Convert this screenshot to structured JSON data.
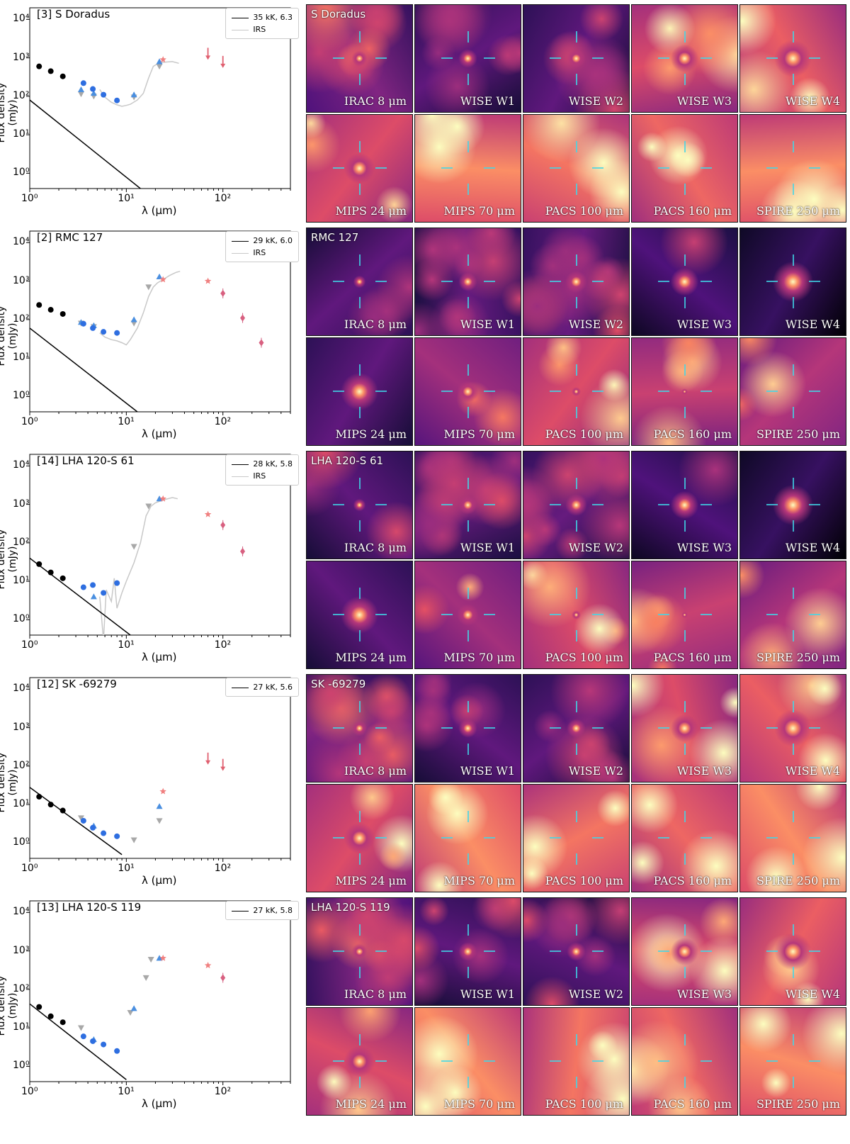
{
  "common": {
    "ylabel": "Flux density (mJy)",
    "xlabel": "λ (μm)",
    "yticks": [
      "10⁴",
      "10³",
      "10²",
      "10¹",
      "10⁰"
    ],
    "xticks": [
      "10⁰",
      "10¹",
      "10²"
    ],
    "irs_label": "IRS",
    "panel_labels": [
      "IRAC 8 μm",
      "WISE W1",
      "WISE W2",
      "WISE W3",
      "WISE W4",
      "MIPS 24 μm",
      "MIPS 70 μm",
      "PACS 100 μm",
      "PACS 160 μm",
      "SPIRE 250 μm"
    ]
  },
  "chart_data": [
    {
      "type": "scatter",
      "title": "[3] S Doradus",
      "source": "S Doradus",
      "model": "35 kK, 6.3",
      "irs": true,
      "model_line": [
        [
          1,
          80
        ],
        [
          14,
          0.4
        ]
      ],
      "black": [
        [
          1.25,
          600
        ],
        [
          1.65,
          450
        ],
        [
          2.2,
          330
        ]
      ],
      "blue_circles": [
        [
          3.6,
          220
        ],
        [
          4.5,
          155
        ],
        [
          5.8,
          110
        ],
        [
          8,
          78
        ]
      ],
      "blue_tri": [
        [
          3.4,
          150
        ],
        [
          4.6,
          120
        ],
        [
          12,
          110
        ],
        [
          22,
          800
        ]
      ],
      "grey_tri": [
        [
          3.4,
          115
        ],
        [
          4.6,
          100
        ],
        [
          12,
          95
        ],
        [
          22,
          600
        ]
      ],
      "red_star": [
        [
          24,
          900
        ]
      ],
      "upper": [
        [
          70,
          1300
        ],
        [
          100,
          800
        ]
      ],
      "diamond": [],
      "irs_pts": [
        [
          5.3,
          150
        ],
        [
          6,
          95
        ],
        [
          7,
          70
        ],
        [
          8,
          60
        ],
        [
          9,
          55
        ],
        [
          10,
          58
        ],
        [
          11,
          62
        ],
        [
          13,
          80
        ],
        [
          15,
          120
        ],
        [
          17,
          300
        ],
        [
          19,
          600
        ],
        [
          21,
          700
        ],
        [
          23,
          760
        ],
        [
          26,
          780
        ],
        [
          30,
          800
        ],
        [
          35,
          720
        ]
      ],
      "bg": "dense"
    },
    {
      "type": "scatter",
      "title": "[2] RMC 127",
      "source": "RMC 127",
      "model": "29 kK, 6.0",
      "irs": true,
      "model_line": [
        [
          1,
          60
        ],
        [
          13,
          0.4
        ]
      ],
      "black": [
        [
          1.25,
          240
        ],
        [
          1.65,
          180
        ],
        [
          2.2,
          140
        ]
      ],
      "blue_circles": [
        [
          3.6,
          78
        ],
        [
          4.5,
          60
        ],
        [
          5.8,
          48
        ],
        [
          8,
          45
        ]
      ],
      "blue_tri": [
        [
          3.4,
          85
        ],
        [
          4.6,
          70
        ],
        [
          12,
          100
        ],
        [
          22,
          1300
        ]
      ],
      "grey_tri": [
        [
          3.4,
          80
        ],
        [
          4.6,
          65
        ],
        [
          12,
          80
        ],
        [
          17,
          700
        ]
      ],
      "red_star": [
        [
          24,
          1100
        ],
        [
          70,
          1000
        ]
      ],
      "upper": [],
      "diamond": [
        [
          100,
          480
        ],
        [
          160,
          110
        ],
        [
          250,
          25
        ]
      ],
      "irs_pts": [
        [
          5.3,
          45
        ],
        [
          6,
          35
        ],
        [
          7,
          30
        ],
        [
          8,
          28
        ],
        [
          9,
          25
        ],
        [
          10,
          22
        ],
        [
          11,
          30
        ],
        [
          13,
          60
        ],
        [
          15,
          150
        ],
        [
          17,
          400
        ],
        [
          19,
          700
        ],
        [
          21,
          900
        ],
        [
          24,
          1100
        ],
        [
          28,
          1400
        ],
        [
          33,
          1700
        ],
        [
          36,
          1800
        ]
      ],
      "bg": "sparse"
    },
    {
      "type": "scatter",
      "title": "[14] LHA 120-S 61",
      "source": "LHA 120-S 61",
      "model": "28 kK, 5.8",
      "irs": true,
      "model_line": [
        [
          1,
          40
        ],
        [
          11,
          0.4
        ]
      ],
      "black": [
        [
          1.25,
          28
        ],
        [
          1.65,
          17
        ],
        [
          2.2,
          12
        ]
      ],
      "blue_circles": [
        [
          3.6,
          7
        ],
        [
          4.5,
          8
        ],
        [
          5.8,
          5
        ],
        [
          8,
          9
        ]
      ],
      "blue_tri": [
        [
          4.6,
          4
        ],
        [
          22,
          1400
        ]
      ],
      "grey_tri": [
        [
          12,
          80
        ],
        [
          17,
          900
        ]
      ],
      "red_star": [
        [
          24,
          1400
        ],
        [
          70,
          550
        ]
      ],
      "upper": [],
      "diamond": [
        [
          100,
          290
        ],
        [
          160,
          60
        ]
      ],
      "irs_pts": [
        [
          5.3,
          4
        ],
        [
          5.8,
          0.3
        ],
        [
          6.2,
          6
        ],
        [
          7,
          3
        ],
        [
          7.5,
          12
        ],
        [
          8,
          2
        ],
        [
          9,
          5
        ],
        [
          10,
          10
        ],
        [
          12,
          30
        ],
        [
          14,
          100
        ],
        [
          16,
          500
        ],
        [
          18,
          900
        ],
        [
          20,
          1100
        ],
        [
          24,
          1300
        ],
        [
          30,
          1500
        ],
        [
          34,
          1400
        ]
      ],
      "bg": "sparse"
    },
    {
      "type": "scatter",
      "title": "[12] SK -69279",
      "source": "SK -69279",
      "model": "27 kK, 5.6",
      "irs": false,
      "model_line": [
        [
          1,
          28
        ],
        [
          9,
          0.5
        ]
      ],
      "black": [
        [
          1.25,
          16
        ],
        [
          1.65,
          10
        ],
        [
          2.2,
          7
        ]
      ],
      "blue_circles": [
        [
          3.6,
          3.8
        ],
        [
          4.5,
          2.5
        ],
        [
          5.8,
          1.8
        ],
        [
          8,
          1.5
        ]
      ],
      "blue_tri": [
        [
          4.6,
          2.8
        ],
        [
          22,
          9
        ]
      ],
      "grey_tri": [
        [
          3.4,
          4.5
        ],
        [
          12,
          1.2
        ],
        [
          22,
          3.8
        ]
      ],
      "red_star": [
        [
          24,
          22
        ]
      ],
      "upper": [
        [
          70,
          160
        ],
        [
          100,
          110
        ]
      ],
      "diamond": [],
      "irs_pts": [],
      "bg": "dense"
    },
    {
      "type": "scatter",
      "title": "[13] LHA 120-S 119",
      "source": "LHA 120-S 119",
      "model": "27 kK, 5.8",
      "irs": false,
      "model_line": [
        [
          1,
          42
        ],
        [
          10,
          0.45
        ]
      ],
      "black": [
        [
          1.25,
          35
        ],
        [
          1.65,
          20
        ],
        [
          2.2,
          14
        ]
      ],
      "blue_circles": [
        [
          3.6,
          6
        ],
        [
          4.5,
          4.5
        ],
        [
          5.8,
          3.7
        ],
        [
          8,
          2.5
        ]
      ],
      "blue_tri": [
        [
          4.6,
          5
        ],
        [
          12,
          32
        ],
        [
          22,
          650
        ]
      ],
      "grey_tri": [
        [
          3.4,
          10
        ],
        [
          11,
          25
        ],
        [
          16,
          200
        ],
        [
          18,
          600
        ]
      ],
      "red_star": [
        [
          24,
          650
        ],
        [
          70,
          420
        ]
      ],
      "upper": [],
      "diamond": [
        [
          100,
          200
        ]
      ],
      "irs_pts": [],
      "bg": "dense"
    }
  ]
}
